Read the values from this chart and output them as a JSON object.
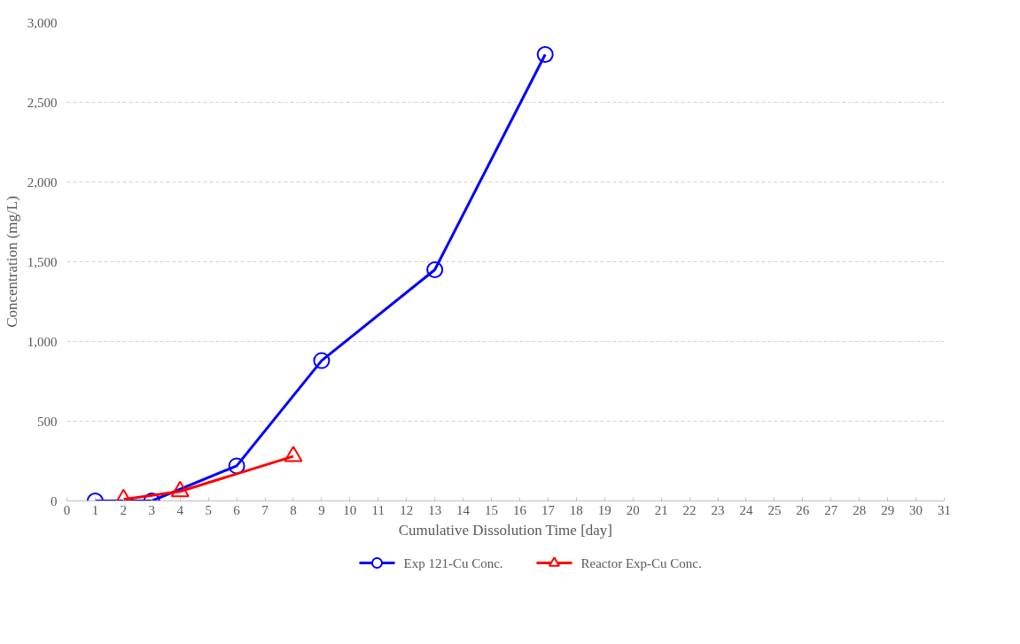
{
  "chart_data": {
    "type": "line",
    "xlabel": "Cumulative Dissolution Time [day]",
    "ylabel": "Concentration (mg/L)",
    "xlim": [
      0,
      31
    ],
    "xticks": [
      0,
      1,
      2,
      3,
      4,
      5,
      6,
      7,
      8,
      9,
      10,
      11,
      12,
      13,
      14,
      15,
      16,
      17,
      18,
      19,
      20,
      21,
      22,
      23,
      24,
      25,
      26,
      27,
      28,
      29,
      30,
      31
    ],
    "ylim": [
      0,
      3000
    ],
    "yticks": [
      0,
      500,
      {
        "value": 1000,
        "label": "1,000"
      },
      {
        "value": 1500,
        "label": "1,500"
      },
      {
        "value": 2000,
        "label": "2,000"
      },
      {
        "value": 2500,
        "label": "2,500"
      },
      {
        "value": 3000,
        "label": "3,000"
      }
    ],
    "grid": "y",
    "legend": "bottom",
    "series": [
      {
        "name": "Exp 121-Cu Conc.",
        "color": "#0000ff",
        "marker": "circle",
        "x": [
          1,
          3,
          6,
          9,
          13,
          16.9
        ],
        "values": [
          0,
          0,
          220,
          880,
          1450,
          2800
        ]
      },
      {
        "name": "Reactor Exp-Cu Conc.",
        "color": "#ff0000",
        "marker": "triangle",
        "x": [
          2,
          4,
          8
        ],
        "values": [
          10,
          60,
          280
        ]
      }
    ]
  }
}
